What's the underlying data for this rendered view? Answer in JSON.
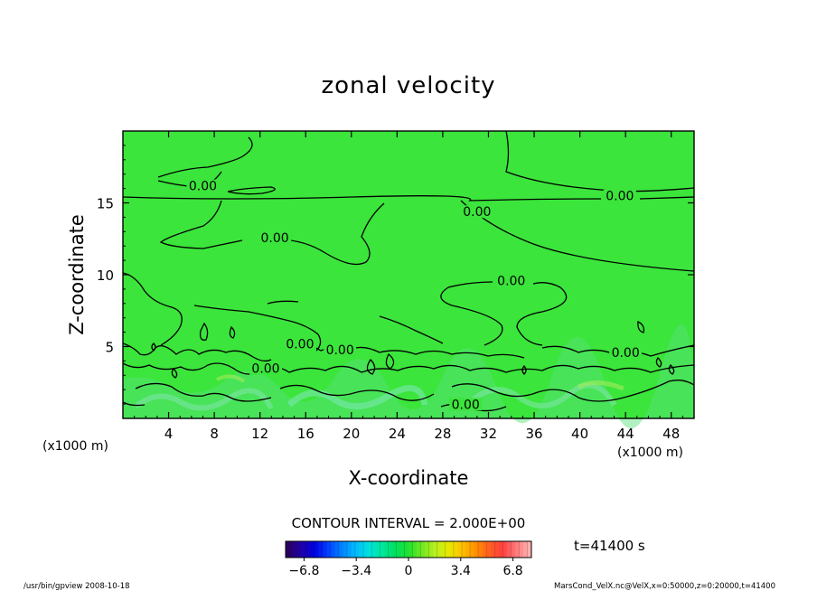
{
  "chart_data": {
    "type": "heatmap",
    "title": "zonal velocity",
    "xlabel": "X-coordinate",
    "ylabel": "Z-coordinate",
    "x_unit_label": "(x1000 m)",
    "y_unit_label": "(x1000 m)",
    "xlim": [
      0,
      50
    ],
    "ylim": [
      0,
      20
    ],
    "x_ticks": [
      4,
      8,
      12,
      16,
      20,
      24,
      28,
      32,
      36,
      40,
      44,
      48
    ],
    "y_ticks": [
      5,
      10,
      15
    ],
    "contour_interval_text": "CONTOUR INTERVAL = 2.000E+00",
    "time_text": "t=41400 s",
    "contour_labels": [
      {
        "text": "0.00",
        "x": 7,
        "z": 16
      },
      {
        "text": "0.00",
        "x": 13.3,
        "z": 12.4
      },
      {
        "text": "0.00",
        "x": 31,
        "z": 14.2
      },
      {
        "text": "0.00",
        "x": 43.5,
        "z": 15.3
      },
      {
        "text": "0.00",
        "x": 34,
        "z": 9.4
      },
      {
        "text": "0.00",
        "x": 15.5,
        "z": 5
      },
      {
        "text": "0.00",
        "x": 19,
        "z": 4.6
      },
      {
        "text": "0.00",
        "x": 12.5,
        "z": 3.3
      },
      {
        "text": "0.00",
        "x": 44,
        "z": 4.4
      },
      {
        "text": "0.00",
        "x": 30,
        "z": 0.8
      }
    ],
    "colorbar": {
      "min": -8,
      "max": 8,
      "tick_values": [
        -6.8,
        -3.4,
        0,
        3.4,
        6.8
      ],
      "tick_labels": [
        "−6.8",
        "−3.4",
        "0",
        "3.4",
        "6.8"
      ],
      "colors": [
        "#2a0060",
        "#1f00a8",
        "#0000e0",
        "#0040ff",
        "#0080ff",
        "#00b8ff",
        "#00e0e0",
        "#00e8a0",
        "#00e060",
        "#20e030",
        "#70e820",
        "#b8f020",
        "#e8e800",
        "#ffc000",
        "#ff9000",
        "#ff6020",
        "#ff4040",
        "#ff7878",
        "#ffb0b0"
      ]
    },
    "background_value_color": "#3be53b"
  },
  "footer": {
    "left": "/usr/bin/gpview  2008-10-18",
    "right": "MarsCond_VelX.nc@VelX,x=0:50000,z=0:20000,t=41400"
  }
}
